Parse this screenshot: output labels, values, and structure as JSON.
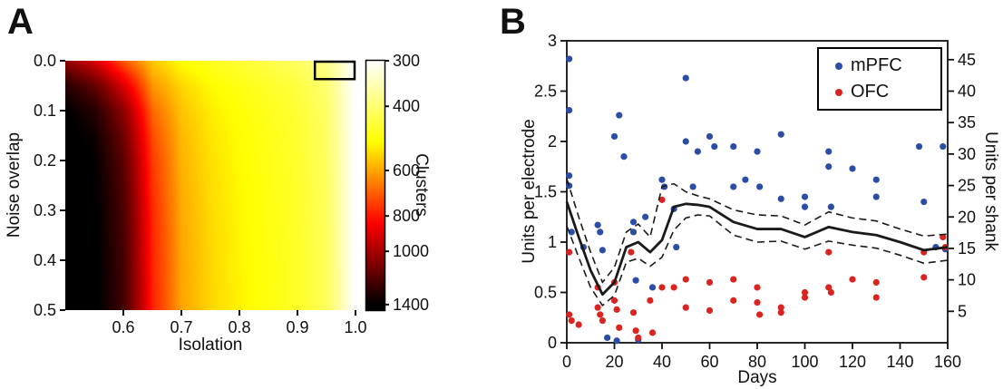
{
  "figure": {
    "panel_a_label": "A",
    "panel_b_label": "B",
    "background_color": "#ffffff",
    "axis_color": "#111111"
  },
  "chart_data": [
    {
      "type": "heatmap",
      "panel": "A",
      "xlabel": "Isolation",
      "ylabel": "Noise overlap",
      "colorbar_label": "Clusters",
      "x_range": [
        0.5,
        1.0
      ],
      "y_range": [
        0.0,
        0.5
      ],
      "x_ticks": [
        "0.6",
        "0.7",
        "0.8",
        "0.9",
        "1.0"
      ],
      "x_tick_values": [
        0.6,
        0.7,
        0.8,
        0.9,
        1.0
      ],
      "y_ticks": [
        "0.0",
        "0.1",
        "0.2",
        "0.3",
        "0.4",
        "0.5"
      ],
      "y_tick_values": [
        0.0,
        0.1,
        0.2,
        0.3,
        0.4,
        0.5
      ],
      "colorbar_ticks": [
        300,
        400,
        600,
        800,
        1000,
        1400
      ],
      "colorbar_range": [
        300,
        1450
      ],
      "color_scale": {
        "type": "log",
        "vmin": 300,
        "vmax": 1400,
        "colormap": "hot_reversed"
      },
      "grid_x": [
        0.5,
        0.55,
        0.6,
        0.65,
        0.7,
        0.75,
        0.8,
        0.85,
        0.9,
        0.95,
        1.0
      ],
      "grid_y": [
        0.0,
        0.05,
        0.1,
        0.15,
        0.2,
        0.25,
        0.3,
        0.35,
        0.4,
        0.45,
        0.5
      ],
      "values": [
        [
          1050,
          900,
          700,
          560,
          500,
          470,
          450,
          430,
          410,
          380,
          295
        ],
        [
          1300,
          1150,
          900,
          620,
          545,
          505,
          482,
          462,
          440,
          400,
          295
        ],
        [
          1400,
          1300,
          1050,
          680,
          565,
          520,
          495,
          472,
          450,
          408,
          295
        ],
        [
          1432,
          1360,
          1120,
          720,
          578,
          528,
          500,
          477,
          454,
          411,
          295
        ],
        [
          1446,
          1392,
          1160,
          745,
          586,
          533,
          504,
          480,
          457,
          413,
          295
        ],
        [
          1452,
          1408,
          1185,
          760,
          591,
          537,
          507,
          482,
          459,
          415,
          295
        ],
        [
          1456,
          1416,
          1200,
          770,
          595,
          540,
          509,
          484,
          460,
          416,
          295
        ],
        [
          1458,
          1421,
          1210,
          777,
          598,
          542,
          510,
          485,
          461,
          417,
          295
        ],
        [
          1460,
          1425,
          1216,
          781,
          600,
          543,
          511,
          486,
          462,
          417,
          295
        ],
        [
          1461,
          1428,
          1220,
          784,
          601,
          544,
          512,
          486,
          462,
          418,
          295
        ],
        [
          1462,
          1430,
          1222,
          786,
          602,
          545,
          512,
          487,
          463,
          418,
          295
        ]
      ],
      "highlight_box": {
        "x0": 0.93,
        "x1": 1.0,
        "y0": 0.0,
        "y1": 0.035
      }
    },
    {
      "type": "scatter",
      "panel": "B",
      "xlabel": "Days",
      "ylabel_left": "Units per electrode",
      "ylabel_right": "Units per shank",
      "xlim": [
        0,
        160
      ],
      "ylim_left": [
        0,
        3
      ],
      "x_ticks": [
        0,
        20,
        40,
        60,
        80,
        100,
        120,
        140,
        160
      ],
      "y_ticks_left": [
        "0",
        "0.5",
        "1",
        "1.5",
        "2",
        "2.5",
        "3"
      ],
      "y_tick_values_left": [
        0,
        0.5,
        1,
        1.5,
        2,
        2.5,
        3
      ],
      "y_ticks_right": [
        5,
        10,
        15,
        20,
        25,
        30,
        35,
        40,
        45
      ],
      "right_axis_scale": 16,
      "legend": [
        {
          "label": "mPFC",
          "color": "#2b4da6"
        },
        {
          "label": "OFC",
          "color": "#da2420"
        }
      ],
      "series": [
        {
          "name": "mPFC",
          "type": "scatter",
          "color": "#2b4da6",
          "points": [
            [
              1,
              2.82
            ],
            [
              1,
              2.31
            ],
            [
              1,
              1.66
            ],
            [
              1,
              1.56
            ],
            [
              2,
              1.1
            ],
            [
              7,
              0.95
            ],
            [
              13,
              1.17
            ],
            [
              14,
              1.1
            ],
            [
              15,
              0.92
            ],
            [
              17,
              0.05
            ],
            [
              20,
              2.05
            ],
            [
              21,
              0.02
            ],
            [
              22,
              2.26
            ],
            [
              24,
              1.85
            ],
            [
              28,
              1.2
            ],
            [
              28,
              1.1
            ],
            [
              29,
              0.62
            ],
            [
              30,
              0.03
            ],
            [
              33,
              1.25
            ],
            [
              36,
              0.55
            ],
            [
              40,
              1.62
            ],
            [
              41,
              1.55
            ],
            [
              45,
              1.33
            ],
            [
              46,
              0.95
            ],
            [
              50,
              2.63
            ],
            [
              50,
              2.0
            ],
            [
              53,
              1.55
            ],
            [
              55,
              1.9
            ],
            [
              60,
              2.05
            ],
            [
              62,
              1.95
            ],
            [
              70,
              1.95
            ],
            [
              70,
              1.55
            ],
            [
              75,
              1.62
            ],
            [
              80,
              1.9
            ],
            [
              81,
              1.55
            ],
            [
              90,
              2.07
            ],
            [
              90,
              1.43
            ],
            [
              100,
              1.45
            ],
            [
              100,
              1.35
            ],
            [
              110,
              1.9
            ],
            [
              110,
              1.75
            ],
            [
              111,
              1.35
            ],
            [
              120,
              1.73
            ],
            [
              130,
              1.62
            ],
            [
              130,
              1.45
            ],
            [
              148,
              1.95
            ],
            [
              150,
              1.4
            ],
            [
              155,
              0.95
            ],
            [
              158,
              1.95
            ],
            [
              159,
              0.93
            ]
          ]
        },
        {
          "name": "OFC",
          "type": "scatter",
          "color": "#da2420",
          "points": [
            [
              1,
              0.9
            ],
            [
              1,
              0.28
            ],
            [
              2,
              0.22
            ],
            [
              5,
              0.18
            ],
            [
              13,
              0.55
            ],
            [
              13,
              0.35
            ],
            [
              14,
              0.28
            ],
            [
              15,
              0.22
            ],
            [
              20,
              0.6
            ],
            [
              20,
              0.42
            ],
            [
              21,
              0.33
            ],
            [
              22,
              0.15
            ],
            [
              27,
              0.9
            ],
            [
              28,
              0.3
            ],
            [
              29,
              0.12
            ],
            [
              30,
              0.05
            ],
            [
              35,
              0.42
            ],
            [
              36,
              0.1
            ],
            [
              40,
              1.42
            ],
            [
              40,
              0.55
            ],
            [
              45,
              0.55
            ],
            [
              50,
              0.63
            ],
            [
              50,
              0.35
            ],
            [
              60,
              0.6
            ],
            [
              60,
              0.32
            ],
            [
              70,
              0.63
            ],
            [
              70,
              0.42
            ],
            [
              80,
              0.55
            ],
            [
              80,
              0.4
            ],
            [
              81,
              0.28
            ],
            [
              90,
              0.35
            ],
            [
              90,
              0.3
            ],
            [
              100,
              0.5
            ],
            [
              100,
              0.45
            ],
            [
              110,
              0.9
            ],
            [
              110,
              0.55
            ],
            [
              111,
              0.5
            ],
            [
              120,
              0.63
            ],
            [
              130,
              0.6
            ],
            [
              130,
              0.45
            ],
            [
              150,
              0.9
            ],
            [
              150,
              0.65
            ],
            [
              158,
              1.05
            ],
            [
              159,
              0.95
            ]
          ]
        },
        {
          "name": "mean",
          "type": "line",
          "style": "solid",
          "color": "#1a1a1a",
          "x": [
            0,
            5,
            10,
            15,
            20,
            25,
            30,
            35,
            40,
            45,
            50,
            55,
            60,
            70,
            80,
            90,
            100,
            110,
            120,
            130,
            140,
            150,
            160
          ],
          "y": [
            1.4,
            1.05,
            0.72,
            0.48,
            0.6,
            0.95,
            1.0,
            0.9,
            1.02,
            1.35,
            1.38,
            1.37,
            1.35,
            1.2,
            1.13,
            1.13,
            1.05,
            1.15,
            1.1,
            1.07,
            1.0,
            0.92,
            0.95
          ]
        },
        {
          "name": "upper_ci",
          "type": "line",
          "style": "dashed",
          "color": "#1a1a1a",
          "x": [
            0,
            5,
            10,
            15,
            20,
            25,
            30,
            35,
            40,
            45,
            50,
            55,
            60,
            70,
            80,
            90,
            100,
            110,
            120,
            130,
            140,
            150,
            160
          ],
          "y": [
            1.63,
            1.25,
            0.9,
            0.6,
            0.75,
            1.1,
            1.18,
            1.05,
            1.55,
            1.58,
            1.5,
            1.46,
            1.43,
            1.32,
            1.27,
            1.26,
            1.17,
            1.3,
            1.24,
            1.21,
            1.13,
            1.06,
            1.08
          ]
        },
        {
          "name": "lower_ci",
          "type": "line",
          "style": "dashed",
          "color": "#1a1a1a",
          "x": [
            0,
            5,
            10,
            15,
            20,
            25,
            30,
            35,
            40,
            45,
            50,
            55,
            60,
            70,
            80,
            90,
            100,
            110,
            120,
            130,
            140,
            150,
            160
          ],
          "y": [
            1.16,
            0.85,
            0.55,
            0.37,
            0.47,
            0.8,
            0.84,
            0.76,
            0.85,
            1.12,
            1.24,
            1.27,
            1.26,
            1.07,
            1.0,
            1.01,
            0.93,
            1.01,
            0.97,
            0.94,
            0.87,
            0.79,
            0.82
          ]
        }
      ]
    }
  ]
}
